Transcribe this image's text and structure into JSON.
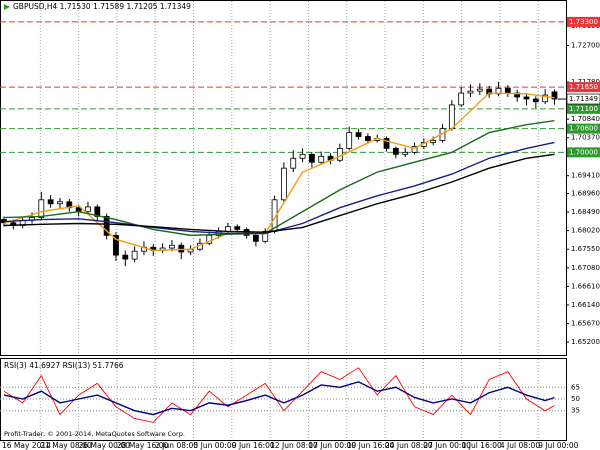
{
  "chart_data": [
    {
      "type": "candlestick",
      "title": "GBPUSD,H4 1.71530 1.71589 1.71205 1.71349",
      "ohlc": [
        [
          1.683,
          1.6838,
          1.6812,
          1.6822
        ],
        [
          1.6822,
          1.683,
          1.6805,
          1.6815
        ],
        [
          1.6815,
          1.6835,
          1.6808,
          1.6828
        ],
        [
          1.6828,
          1.6848,
          1.682,
          1.6835
        ],
        [
          1.6835,
          1.69,
          1.683,
          1.688
        ],
        [
          1.688,
          1.6892,
          1.686,
          1.687
        ],
        [
          1.687,
          1.6885,
          1.6858,
          1.6875
        ],
        [
          1.6875,
          1.6882,
          1.685,
          1.686
        ],
        [
          1.686,
          1.6868,
          1.6838,
          1.685
        ],
        [
          1.685,
          1.6875,
          1.6845,
          1.6862
        ],
        [
          1.6862,
          1.6868,
          1.6825,
          1.6838
        ],
        [
          1.6838,
          1.6845,
          1.678,
          1.679
        ],
        [
          1.679,
          1.6798,
          1.6725,
          1.674
        ],
        [
          1.674,
          1.6752,
          1.6712,
          1.673
        ],
        [
          1.673,
          1.6762,
          1.6722,
          1.675
        ],
        [
          1.675,
          1.6775,
          1.674,
          1.676
        ],
        [
          1.676,
          1.6768,
          1.6738,
          1.6752
        ],
        [
          1.6752,
          1.677,
          1.6745,
          1.6758
        ],
        [
          1.6758,
          1.6778,
          1.675,
          1.6765
        ],
        [
          1.6765,
          1.6772,
          1.673,
          1.6748
        ],
        [
          1.6748,
          1.6765,
          1.674,
          1.6755
        ],
        [
          1.6755,
          1.6782,
          1.675,
          1.677
        ],
        [
          1.677,
          1.68,
          1.6765,
          1.679
        ],
        [
          1.679,
          1.681,
          1.6782,
          1.68
        ],
        [
          1.68,
          1.6822,
          1.6795,
          1.6812
        ],
        [
          1.6812,
          1.6818,
          1.6798,
          1.6805
        ],
        [
          1.6805,
          1.681,
          1.6782,
          1.679
        ],
        [
          1.679,
          1.6795,
          1.6762,
          1.6775
        ],
        [
          1.6775,
          1.6808,
          1.677,
          1.68
        ],
        [
          1.68,
          1.689,
          1.6795,
          1.688
        ],
        [
          1.688,
          1.6975,
          1.6875,
          1.696
        ],
        [
          1.696,
          1.7005,
          1.695,
          1.6985
        ],
        [
          1.6985,
          1.701,
          1.6975,
          1.6995
        ],
        [
          1.6995,
          1.7,
          1.6962,
          1.6975
        ],
        [
          1.6975,
          1.7002,
          1.6968,
          1.699
        ],
        [
          1.699,
          1.6998,
          1.697,
          1.698
        ],
        [
          1.698,
          1.7022,
          1.6975,
          1.701
        ],
        [
          1.701,
          1.7065,
          1.7005,
          1.705
        ],
        [
          1.705,
          1.706,
          1.7032,
          1.704
        ],
        [
          1.704,
          1.7048,
          1.7022,
          1.703
        ],
        [
          1.703,
          1.7045,
          1.7025,
          1.7035
        ],
        [
          1.7035,
          1.704,
          1.7002,
          1.701
        ],
        [
          1.701,
          1.7015,
          1.6985,
          1.6995
        ],
        [
          1.6995,
          1.7012,
          1.6988,
          1.7
        ],
        [
          1.7,
          1.7025,
          1.6995,
          1.7015
        ],
        [
          1.7015,
          1.7035,
          1.7008,
          1.7025
        ],
        [
          1.7025,
          1.704,
          1.7018,
          1.703
        ],
        [
          1.703,
          1.7072,
          1.7025,
          1.706
        ],
        [
          1.706,
          1.7132,
          1.7055,
          1.712
        ],
        [
          1.712,
          1.7165,
          1.7115,
          1.715
        ],
        [
          1.715,
          1.7172,
          1.714,
          1.7155
        ],
        [
          1.7155,
          1.7175,
          1.7145,
          1.716
        ],
        [
          1.716,
          1.7168,
          1.7138,
          1.7148
        ],
        [
          1.7148,
          1.7178,
          1.7142,
          1.7162
        ],
        [
          1.7162,
          1.717,
          1.714,
          1.715
        ],
        [
          1.715,
          1.7158,
          1.7128,
          1.714
        ],
        [
          1.714,
          1.7148,
          1.7118,
          1.7135
        ],
        [
          1.7135,
          1.7142,
          1.7112,
          1.7128
        ],
        [
          1.7128,
          1.716,
          1.7122,
          1.7145
        ],
        [
          1.7153,
          1.71589,
          1.71205,
          1.71349
        ]
      ],
      "up_color": "#ffffff",
      "down_color": "#000000",
      "edge_color": "#000000",
      "moving_averages": [
        {
          "color": "#f39c12",
          "x": [
            0,
            4,
            8,
            12,
            16,
            20,
            24,
            28,
            32,
            36,
            40,
            44,
            48,
            52,
            56,
            59
          ],
          "values": [
            1.682,
            1.685,
            1.6865,
            1.678,
            1.6752,
            1.6755,
            1.6795,
            1.6795,
            1.695,
            1.699,
            1.7035,
            1.701,
            1.706,
            1.715,
            1.7148,
            1.7138
          ]
        },
        {
          "color": "#1a6b1a",
          "x": [
            0,
            4,
            8,
            12,
            16,
            20,
            24,
            28,
            32,
            36,
            40,
            44,
            48,
            52,
            56,
            59
          ],
          "values": [
            1.6835,
            1.6838,
            1.685,
            1.683,
            1.6805,
            1.679,
            1.6793,
            1.6795,
            1.685,
            1.6905,
            1.695,
            1.6975,
            1.7,
            1.705,
            1.707,
            1.708
          ]
        },
        {
          "color": "#1c1c8c",
          "x": [
            0,
            4,
            8,
            12,
            16,
            20,
            24,
            28,
            32,
            36,
            40,
            44,
            48,
            52,
            56,
            59
          ],
          "values": [
            1.6825,
            1.683,
            1.6832,
            1.6822,
            1.681,
            1.68,
            1.6795,
            1.6795,
            1.682,
            1.686,
            1.689,
            1.6915,
            1.6945,
            1.6985,
            1.701,
            1.7025
          ]
        },
        {
          "color": "#000000",
          "x": [
            0,
            4,
            8,
            12,
            16,
            20,
            24,
            28,
            32,
            36,
            40,
            44,
            48,
            52,
            56,
            59
          ],
          "values": [
            1.6815,
            1.6818,
            1.682,
            1.6818,
            1.6812,
            1.6805,
            1.68,
            1.6798,
            1.681,
            1.684,
            1.687,
            1.6895,
            1.6925,
            1.696,
            1.6985,
            1.6995
          ]
        }
      ],
      "ylim": [
        1.6495,
        1.7355
      ],
      "yticks": [
        {
          "value": 1.7319,
          "label": "1.73190"
        },
        {
          "value": 1.727,
          "label": "1.72700"
        },
        {
          "value": 1.7178,
          "label": "1.71780"
        },
        {
          "value": 1.7084,
          "label": "1.70840"
        },
        {
          "value": 1.7037,
          "label": "1.70370"
        },
        {
          "value": 1.6941,
          "label": "1.69410"
        },
        {
          "value": 1.6896,
          "label": "1.68960"
        },
        {
          "value": 1.6849,
          "label": "1.68490"
        },
        {
          "value": 1.6802,
          "label": "1.68020"
        },
        {
          "value": 1.6755,
          "label": "1.67550"
        },
        {
          "value": 1.6708,
          "label": "1.67080"
        },
        {
          "value": 1.6661,
          "label": "1.66610"
        },
        {
          "value": 1.6614,
          "label": "1.66140"
        },
        {
          "value": 1.6567,
          "label": "1.65670"
        },
        {
          "value": 1.652,
          "label": "1.65200"
        }
      ],
      "levels": [
        {
          "value": 1.733,
          "label": "1.73300",
          "color": "#e8353b"
        },
        {
          "value": 1.7165,
          "label": "1.71650",
          "color": "#e8353b"
        },
        {
          "value": 1.711,
          "label": "1.71100",
          "color": "#2e9a2e"
        },
        {
          "value": 1.706,
          "label": "1.70600",
          "color": "#2e9a2e"
        },
        {
          "value": 1.7,
          "label": "1.70000",
          "color": "#2e9a2e"
        }
      ],
      "current": {
        "value": 1.71349,
        "label": "1.71349"
      },
      "x_labels": [
        "16 May 2014",
        "21 May 08:00",
        "26 May 00:00",
        "28 May 16:00",
        "2 Jun 08:00",
        "5 Jun 00:00",
        "9 Jun 16:00",
        "12 Jun 08:00",
        "17 Jun 00:00",
        "19 Jun 16:00",
        "24 Jun 08:00",
        "27 Jun 00:00",
        "1 Jul 16:00",
        "4 Jul 08:00",
        "9 Jul 00:00"
      ],
      "grid": true
    },
    {
      "type": "line",
      "title": "RSI(3) 41.6927 RSI(13) 51.7766",
      "series": [
        {
          "color": "#ff0000",
          "x": [
            0,
            2,
            4,
            6,
            8,
            10,
            12,
            14,
            16,
            18,
            20,
            22,
            24,
            26,
            28,
            30,
            32,
            34,
            36,
            38,
            40,
            42,
            44,
            46,
            48,
            50,
            52,
            54,
            56,
            58,
            59
          ],
          "values": [
            60,
            45,
            80,
            30,
            55,
            70,
            40,
            25,
            20,
            45,
            30,
            60,
            40,
            55,
            70,
            35,
            60,
            85,
            75,
            90,
            55,
            80,
            40,
            30,
            55,
            30,
            75,
            85,
            50,
            35,
            41.6927
          ]
        },
        {
          "color": "#000080",
          "x": [
            0,
            2,
            4,
            6,
            8,
            10,
            12,
            14,
            16,
            18,
            20,
            22,
            24,
            26,
            28,
            30,
            32,
            34,
            36,
            38,
            40,
            42,
            44,
            46,
            48,
            50,
            52,
            54,
            56,
            58,
            59
          ],
          "values": [
            55,
            50,
            60,
            45,
            50,
            55,
            45,
            35,
            30,
            38,
            35,
            45,
            42,
            48,
            55,
            45,
            55,
            68,
            65,
            72,
            60,
            65,
            52,
            45,
            50,
            45,
            58,
            65,
            55,
            48,
            51.7766
          ]
        }
      ],
      "ylim": [
        0,
        100
      ],
      "yticks": [
        35,
        50,
        65
      ]
    }
  ],
  "footer": "Profit-Trader, © 2001-2014, MetaQuotes Software Corp."
}
